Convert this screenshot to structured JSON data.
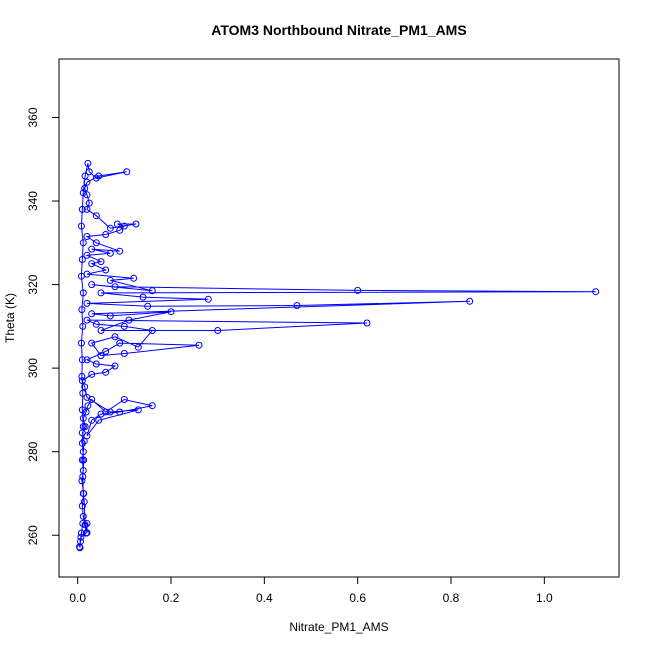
{
  "chart_data": {
    "type": "line",
    "title": "ATOM3 Northbound Nitrate_PM1_AMS",
    "xlabel": "Nitrate_PM1_AMS",
    "ylabel": "Theta (K)",
    "xlim": [
      -0.04,
      1.16
    ],
    "ylim": [
      250,
      374
    ],
    "x_ticks": [
      0.0,
      0.2,
      0.4,
      0.6,
      0.8,
      1.0
    ],
    "x_tick_labels": [
      "0.0",
      "0.2",
      "0.4",
      "0.6",
      "0.8",
      "1.0"
    ],
    "y_ticks": [
      260,
      280,
      300,
      320,
      340,
      360
    ],
    "y_tick_labels": [
      "260",
      "280",
      "300",
      "320",
      "340",
      "360"
    ],
    "grid": false,
    "series": [
      {
        "color": "#0000ff",
        "marker": "open-circle",
        "points": [
          [
            0.005,
            257.0
          ],
          [
            0.006,
            258.5
          ],
          [
            0.008,
            260.5
          ],
          [
            0.011,
            262.8
          ],
          [
            0.02,
            262.8
          ],
          [
            0.02,
            260.6
          ],
          [
            0.012,
            264.5
          ],
          [
            0.01,
            267.0
          ],
          [
            0.013,
            270.0
          ],
          [
            0.009,
            273.0
          ],
          [
            0.012,
            275.5
          ],
          [
            0.01,
            278.0
          ],
          [
            0.012,
            280.0
          ],
          [
            0.014,
            282.5
          ],
          [
            0.01,
            284.5
          ],
          [
            0.016,
            286.0
          ],
          [
            0.012,
            288.0
          ],
          [
            0.018,
            289.5
          ],
          [
            0.022,
            291.0
          ],
          [
            0.03,
            292.5
          ],
          [
            0.06,
            289.5
          ],
          [
            0.1,
            292.5
          ],
          [
            0.16,
            291.0
          ],
          [
            0.09,
            289.5
          ],
          [
            0.05,
            289.0
          ],
          [
            0.03,
            287.5
          ],
          [
            0.02,
            283.8
          ],
          [
            0.045,
            287.5
          ],
          [
            0.13,
            290.0
          ],
          [
            0.07,
            289.5
          ],
          [
            0.02,
            293.0
          ],
          [
            0.015,
            295.5
          ],
          [
            0.01,
            297.0
          ],
          [
            0.03,
            298.5
          ],
          [
            0.06,
            299.0
          ],
          [
            0.08,
            300.5
          ],
          [
            0.04,
            301.0
          ],
          [
            0.02,
            302.0
          ],
          [
            0.06,
            304.0
          ],
          [
            0.09,
            306.0
          ],
          [
            0.26,
            305.5
          ],
          [
            0.1,
            303.5
          ],
          [
            0.05,
            303.0
          ],
          [
            0.03,
            306.0
          ],
          [
            0.08,
            307.5
          ],
          [
            0.13,
            305.0
          ],
          [
            0.16,
            309.0
          ],
          [
            0.1,
            310.0
          ],
          [
            0.04,
            310.5
          ],
          [
            0.02,
            311.5
          ],
          [
            0.62,
            310.8
          ],
          [
            0.3,
            309.0
          ],
          [
            0.05,
            309.0
          ],
          [
            0.11,
            311.5
          ],
          [
            0.2,
            313.5
          ],
          [
            0.07,
            312.5
          ],
          [
            0.03,
            313.0
          ],
          [
            0.84,
            316.0
          ],
          [
            0.47,
            315.0
          ],
          [
            0.15,
            314.8
          ],
          [
            0.02,
            315.5
          ],
          [
            0.28,
            316.5
          ],
          [
            0.14,
            317.0
          ],
          [
            0.05,
            318.0
          ],
          [
            1.11,
            318.3
          ],
          [
            0.6,
            318.6
          ],
          [
            0.08,
            319.5
          ],
          [
            0.03,
            320.0
          ],
          [
            0.16,
            318.5
          ],
          [
            0.07,
            321.0
          ],
          [
            0.12,
            321.5
          ],
          [
            0.02,
            322.5
          ],
          [
            0.06,
            323.5
          ],
          [
            0.03,
            325.0
          ],
          [
            0.05,
            325.5
          ],
          [
            0.02,
            327.0
          ],
          [
            0.07,
            327.5
          ],
          [
            0.03,
            328.5
          ],
          [
            0.09,
            328.0
          ],
          [
            0.04,
            330.0
          ],
          [
            0.02,
            331.5
          ],
          [
            0.06,
            332.0
          ],
          [
            0.09,
            333.0
          ],
          [
            0.1,
            334.0
          ],
          [
            0.085,
            334.5
          ],
          [
            0.125,
            334.5
          ],
          [
            0.07,
            333.5
          ],
          [
            0.04,
            336.5
          ],
          [
            0.02,
            338.0
          ],
          [
            0.025,
            339.5
          ],
          [
            0.02,
            341.5
          ],
          [
            0.015,
            343.0
          ],
          [
            0.02,
            344.5
          ],
          [
            0.045,
            346.0
          ],
          [
            0.105,
            347.0
          ],
          [
            0.04,
            345.5
          ],
          [
            0.025,
            347.0
          ],
          [
            0.022,
            349.0
          ],
          [
            0.016,
            346.0
          ],
          [
            0.012,
            342.0
          ],
          [
            0.01,
            338.0
          ],
          [
            0.008,
            334.0
          ],
          [
            0.012,
            330.0
          ],
          [
            0.01,
            326.0
          ],
          [
            0.008,
            322.0
          ],
          [
            0.012,
            318.0
          ],
          [
            0.009,
            314.0
          ],
          [
            0.011,
            310.0
          ],
          [
            0.008,
            306.0
          ],
          [
            0.01,
            302.0
          ],
          [
            0.009,
            298.0
          ],
          [
            0.011,
            294.0
          ],
          [
            0.01,
            290.0
          ],
          [
            0.012,
            286.0
          ],
          [
            0.01,
            282.0
          ],
          [
            0.013,
            278.0
          ],
          [
            0.011,
            274.0
          ],
          [
            0.012,
            270.0
          ],
          [
            0.014,
            268.0
          ],
          [
            0.016,
            262.5
          ],
          [
            0.018,
            260.5
          ],
          [
            0.007,
            259.5
          ],
          [
            0.004,
            257.2
          ]
        ]
      }
    ]
  }
}
